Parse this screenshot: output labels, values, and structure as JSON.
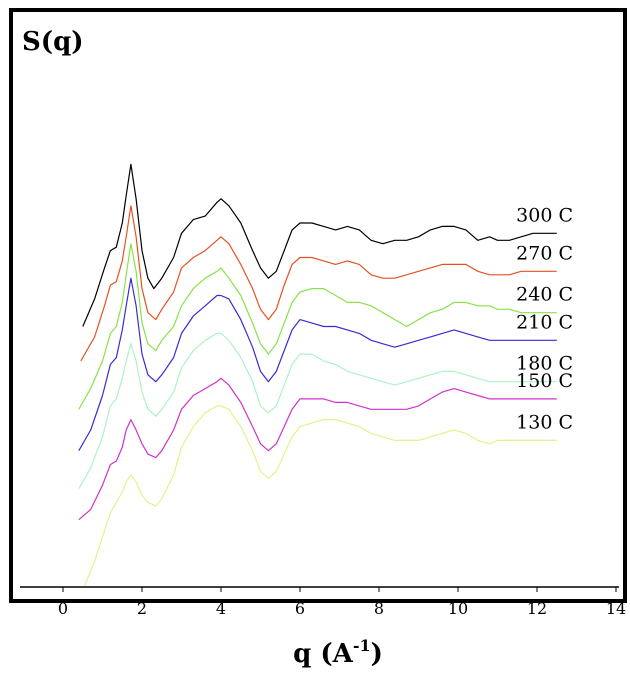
{
  "chart_data": {
    "type": "line",
    "xlabel": "q (A",
    "xlabel_superscript": "-1",
    "xlabel_suffix": ")",
    "ylabel": "S(q)",
    "xlim": [
      -1,
      14
    ],
    "xticks": [
      "0",
      "2",
      "4",
      "6",
      "8",
      "10",
      "12",
      "14"
    ],
    "xtick_values": [
      0,
      2,
      4,
      6,
      8,
      10,
      12,
      14
    ],
    "grid": false,
    "legend": "inline labels at right end of curves",
    "series": [
      {
        "name": "300 C",
        "color": "#000000",
        "x": [
          0.5,
          0.8,
          1.05,
          1.2,
          1.35,
          1.5,
          1.6,
          1.72,
          1.85,
          2.0,
          2.15,
          2.3,
          2.5,
          2.8,
          3.0,
          3.3,
          3.6,
          3.9,
          4.0,
          4.2,
          4.5,
          4.8,
          5.0,
          5.2,
          5.4,
          5.6,
          5.8,
          6.0,
          6.3,
          6.6,
          6.9,
          7.2,
          7.5,
          7.8,
          8.1,
          8.4,
          8.7,
          9.0,
          9.3,
          9.6,
          9.9,
          10.2,
          10.5,
          10.8,
          11.0,
          11.3,
          11.6,
          11.9,
          12.2,
          12.5
        ],
        "y": [
          1.5,
          1.9,
          2.35,
          2.6,
          2.65,
          3.0,
          3.4,
          3.85,
          3.35,
          2.6,
          2.2,
          2.05,
          2.2,
          2.5,
          2.85,
          3.05,
          3.1,
          3.3,
          3.35,
          3.25,
          3.0,
          2.6,
          2.35,
          2.2,
          2.3,
          2.6,
          2.9,
          3.0,
          3.0,
          2.95,
          2.9,
          2.95,
          2.9,
          2.75,
          2.7,
          2.75,
          2.75,
          2.8,
          2.9,
          2.95,
          2.95,
          2.9,
          2.75,
          2.8,
          2.75,
          2.75,
          2.8,
          2.85,
          2.85,
          2.85
        ]
      },
      {
        "name": "270 C",
        "color": "#e65122",
        "x": [
          0.45,
          0.8,
          1.05,
          1.2,
          1.35,
          1.5,
          1.6,
          1.72,
          1.85,
          2.0,
          2.15,
          2.35,
          2.5,
          2.8,
          3.0,
          3.3,
          3.6,
          3.9,
          4.0,
          4.2,
          4.5,
          4.8,
          5.0,
          5.2,
          5.4,
          5.6,
          5.8,
          6.0,
          6.3,
          6.6,
          6.9,
          7.2,
          7.5,
          7.8,
          8.1,
          8.4,
          8.7,
          9.0,
          9.3,
          9.6,
          9.9,
          10.2,
          10.5,
          10.8,
          11.0,
          11.3,
          11.6,
          11.9,
          12.2,
          12.5
        ],
        "y": [
          1.0,
          1.35,
          1.8,
          2.1,
          2.15,
          2.45,
          2.8,
          3.25,
          2.8,
          2.05,
          1.7,
          1.6,
          1.75,
          2.0,
          2.35,
          2.5,
          2.6,
          2.75,
          2.8,
          2.7,
          2.4,
          2.05,
          1.75,
          1.6,
          1.75,
          2.1,
          2.4,
          2.5,
          2.5,
          2.45,
          2.4,
          2.45,
          2.4,
          2.25,
          2.2,
          2.2,
          2.25,
          2.3,
          2.35,
          2.4,
          2.4,
          2.4,
          2.3,
          2.25,
          2.25,
          2.25,
          2.3,
          2.3,
          2.3,
          2.3
        ]
      },
      {
        "name": "240 C",
        "color": "#88e24a",
        "x": [
          0.4,
          0.7,
          1.0,
          1.2,
          1.35,
          1.5,
          1.6,
          1.72,
          1.85,
          2.0,
          2.15,
          2.35,
          2.5,
          2.8,
          3.0,
          3.3,
          3.6,
          3.9,
          4.0,
          4.2,
          4.5,
          4.8,
          5.0,
          5.2,
          5.4,
          5.6,
          5.8,
          6.0,
          6.3,
          6.6,
          6.9,
          7.2,
          7.5,
          7.8,
          8.1,
          8.4,
          8.7,
          9.0,
          9.3,
          9.6,
          9.9,
          10.2,
          10.5,
          10.8,
          11.0,
          11.3,
          11.6,
          11.9,
          12.2,
          12.5
        ],
        "y": [
          0.3,
          0.6,
          1.0,
          1.4,
          1.5,
          1.85,
          2.25,
          2.7,
          2.3,
          1.55,
          1.25,
          1.15,
          1.3,
          1.5,
          1.8,
          2.05,
          2.2,
          2.3,
          2.35,
          2.2,
          1.95,
          1.55,
          1.25,
          1.1,
          1.25,
          1.55,
          1.85,
          2.0,
          2.05,
          2.05,
          1.95,
          1.85,
          1.85,
          1.8,
          1.7,
          1.6,
          1.5,
          1.6,
          1.7,
          1.75,
          1.85,
          1.85,
          1.8,
          1.8,
          1.75,
          1.75,
          1.7,
          1.7,
          1.7,
          1.7
        ]
      },
      {
        "name": "210 C",
        "color": "#3b2bd2",
        "x": [
          0.4,
          0.7,
          1.0,
          1.2,
          1.35,
          1.5,
          1.6,
          1.72,
          1.85,
          2.0,
          2.15,
          2.35,
          2.5,
          2.8,
          3.0,
          3.3,
          3.6,
          3.9,
          4.0,
          4.2,
          4.5,
          4.8,
          5.0,
          5.2,
          5.4,
          5.6,
          5.8,
          6.0,
          6.3,
          6.6,
          6.9,
          7.2,
          7.5,
          7.8,
          8.1,
          8.4,
          8.7,
          9.0,
          9.3,
          9.6,
          9.9,
          10.2,
          10.5,
          10.8,
          11.0,
          11.3,
          11.6,
          11.9,
          12.2,
          12.5
        ],
        "y": [
          -0.3,
          0.0,
          0.5,
          0.95,
          1.05,
          1.45,
          1.8,
          2.2,
          1.8,
          1.1,
          0.8,
          0.7,
          0.8,
          1.05,
          1.4,
          1.65,
          1.8,
          1.95,
          1.95,
          1.9,
          1.6,
          1.2,
          0.85,
          0.7,
          0.85,
          1.15,
          1.45,
          1.6,
          1.55,
          1.5,
          1.5,
          1.45,
          1.4,
          1.3,
          1.25,
          1.2,
          1.25,
          1.3,
          1.35,
          1.4,
          1.45,
          1.4,
          1.35,
          1.3,
          1.3,
          1.3,
          1.3,
          1.3,
          1.3,
          1.3
        ]
      },
      {
        "name": "180 C",
        "color": "#aef2c8",
        "x": [
          0.4,
          0.7,
          1.0,
          1.2,
          1.35,
          1.5,
          1.6,
          1.72,
          1.85,
          2.0,
          2.15,
          2.35,
          2.5,
          2.8,
          3.0,
          3.3,
          3.6,
          3.9,
          4.0,
          4.2,
          4.5,
          4.8,
          5.0,
          5.2,
          5.4,
          5.6,
          5.8,
          6.0,
          6.3,
          6.6,
          6.9,
          7.2,
          7.5,
          7.8,
          8.1,
          8.4,
          8.7,
          9.0,
          9.3,
          9.6,
          9.9,
          10.2,
          10.5,
          10.8,
          11.0,
          11.3,
          11.6,
          11.9,
          12.2,
          12.5
        ],
        "y": [
          -0.85,
          -0.55,
          -0.1,
          0.35,
          0.45,
          0.75,
          1.0,
          1.25,
          1.0,
          0.55,
          0.3,
          0.2,
          0.3,
          0.55,
          0.9,
          1.15,
          1.3,
          1.4,
          1.4,
          1.3,
          1.05,
          0.7,
          0.35,
          0.25,
          0.35,
          0.65,
          0.95,
          1.1,
          1.1,
          1.0,
          0.95,
          0.85,
          0.8,
          0.75,
          0.7,
          0.65,
          0.7,
          0.75,
          0.8,
          0.85,
          0.85,
          0.8,
          0.75,
          0.7,
          0.7,
          0.7,
          0.7,
          0.7,
          0.7,
          0.7
        ]
      },
      {
        "name": "150 C",
        "color": "#cc33cc",
        "x": [
          0.4,
          0.7,
          1.0,
          1.2,
          1.35,
          1.5,
          1.6,
          1.72,
          1.85,
          2.0,
          2.15,
          2.35,
          2.5,
          2.8,
          3.0,
          3.3,
          3.6,
          3.9,
          4.0,
          4.2,
          4.5,
          4.8,
          5.0,
          5.2,
          5.4,
          5.6,
          5.8,
          6.0,
          6.3,
          6.6,
          6.9,
          7.2,
          7.5,
          7.8,
          8.1,
          8.4,
          8.7,
          9.0,
          9.3,
          9.6,
          9.9,
          10.2,
          10.5,
          10.8,
          11.0,
          11.3,
          11.6,
          11.9,
          12.2,
          12.5
        ],
        "y": [
          -1.3,
          -1.15,
          -0.8,
          -0.5,
          -0.45,
          -0.25,
          0.0,
          0.15,
          0.0,
          -0.2,
          -0.35,
          -0.4,
          -0.3,
          0.0,
          0.3,
          0.5,
          0.6,
          0.7,
          0.75,
          0.65,
          0.4,
          0.05,
          -0.2,
          -0.3,
          -0.2,
          0.05,
          0.3,
          0.45,
          0.45,
          0.45,
          0.4,
          0.4,
          0.35,
          0.3,
          0.3,
          0.3,
          0.3,
          0.35,
          0.45,
          0.55,
          0.6,
          0.55,
          0.5,
          0.45,
          0.45,
          0.45,
          0.45,
          0.45,
          0.45,
          0.45
        ]
      },
      {
        "name": "130 C",
        "color": "#ddf58a",
        "x": [
          0.55,
          0.8,
          1.0,
          1.2,
          1.35,
          1.5,
          1.6,
          1.72,
          1.85,
          2.0,
          2.15,
          2.35,
          2.5,
          2.8,
          3.0,
          3.3,
          3.6,
          3.9,
          4.0,
          4.2,
          4.5,
          4.8,
          5.0,
          5.2,
          5.4,
          5.6,
          5.8,
          6.0,
          6.3,
          6.6,
          6.9,
          7.2,
          7.5,
          7.8,
          8.1,
          8.4,
          8.7,
          9.0,
          9.3,
          9.6,
          9.9,
          10.2,
          10.5,
          10.8,
          11.0,
          11.3,
          11.6,
          11.9,
          12.2,
          12.5
        ],
        "y": [
          -2.25,
          -1.9,
          -1.55,
          -1.2,
          -1.05,
          -0.9,
          -0.75,
          -0.65,
          -0.75,
          -0.95,
          -1.05,
          -1.1,
          -1.0,
          -0.65,
          -0.25,
          0.05,
          0.25,
          0.35,
          0.35,
          0.3,
          0.05,
          -0.3,
          -0.6,
          -0.7,
          -0.6,
          -0.35,
          -0.1,
          0.05,
          0.1,
          0.15,
          0.15,
          0.1,
          0.05,
          -0.05,
          -0.1,
          -0.15,
          -0.15,
          -0.15,
          -0.1,
          -0.05,
          0.0,
          -0.05,
          -0.15,
          -0.2,
          -0.15,
          -0.15,
          -0.15,
          -0.15,
          -0.15,
          -0.15
        ]
      }
    ]
  }
}
